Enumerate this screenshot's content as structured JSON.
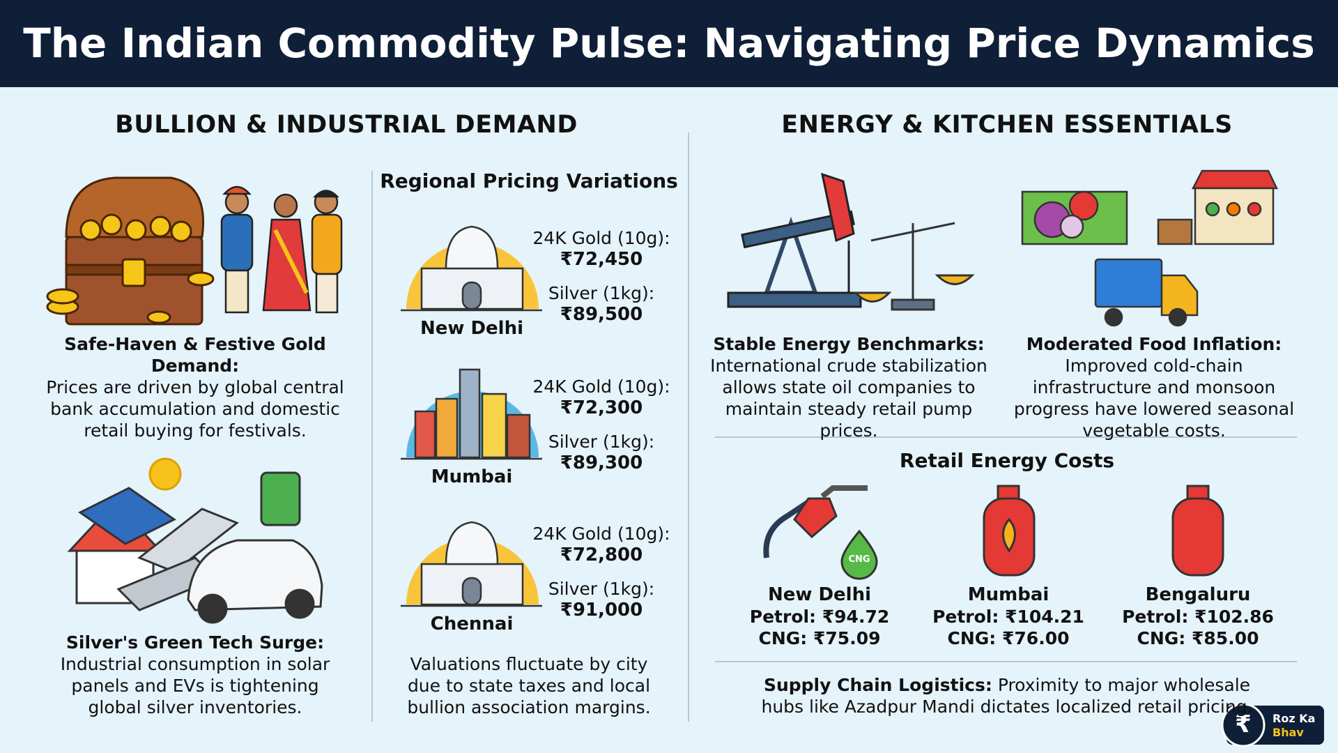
{
  "header": {
    "title": "The Indian Commodity Pulse: Navigating Price Dynamics"
  },
  "left": {
    "heading": "BULLION & INDUSTRIAL DEMAND",
    "gold": {
      "title": "Safe-Haven & Festive Gold Demand:",
      "text": "Prices are driven by global central bank accumulation and domestic retail buying for festivals."
    },
    "silver": {
      "title": "Silver's Green Tech Surge:",
      "text": "Industrial consumption in solar panels and EVs is tightening global silver inventories."
    },
    "regional": {
      "title": "Regional Pricing Variations",
      "cities": [
        {
          "name": "New Delhi",
          "gold_label": "24K Gold (10g):",
          "gold": "₹72,450",
          "silver_label": "Silver (1kg):",
          "silver": "₹89,500"
        },
        {
          "name": "Mumbai",
          "gold_label": "24K Gold (10g):",
          "gold": "₹72,300",
          "silver_label": "Silver (1kg):",
          "silver": "₹89,300"
        },
        {
          "name": "Chennai",
          "gold_label": "24K Gold (10g):",
          "gold": "₹72,800",
          "silver_label": "Silver (1kg):",
          "silver": "₹91,000"
        }
      ],
      "note": "Valuations fluctuate by city due to state taxes and local bullion association margins."
    }
  },
  "right": {
    "heading": "ENERGY & KITCHEN ESSENTIALS",
    "energy": {
      "title": "Stable Energy Benchmarks:",
      "text": "International crude stabilization allows state oil companies to maintain steady retail pump prices."
    },
    "food": {
      "title": "Moderated Food Inflation:",
      "text": "Improved cold-chain infrastructure and monsoon progress have lowered seasonal vegetable costs."
    },
    "retail": {
      "title": "Retail Energy Costs",
      "icon_label": "CNG",
      "cities": [
        {
          "name": "New Delhi",
          "petrol": "Petrol: ₹94.72",
          "cng": "CNG: ₹75.09"
        },
        {
          "name": "Mumbai",
          "petrol": "Petrol: ₹104.21",
          "cng": "CNG: ₹76.00"
        },
        {
          "name": "Bengaluru",
          "petrol": "Petrol: ₹102.86",
          "cng": "CNG: ₹85.00"
        }
      ]
    },
    "logistics": {
      "title": "Supply Chain Logistics:",
      "text": "Proximity to major wholesale hubs like Azadpur Mandi dictates localized retail pricing."
    }
  },
  "brand": {
    "symbol": "₹",
    "line1": "Roz Ka",
    "line2": "Bhav"
  }
}
